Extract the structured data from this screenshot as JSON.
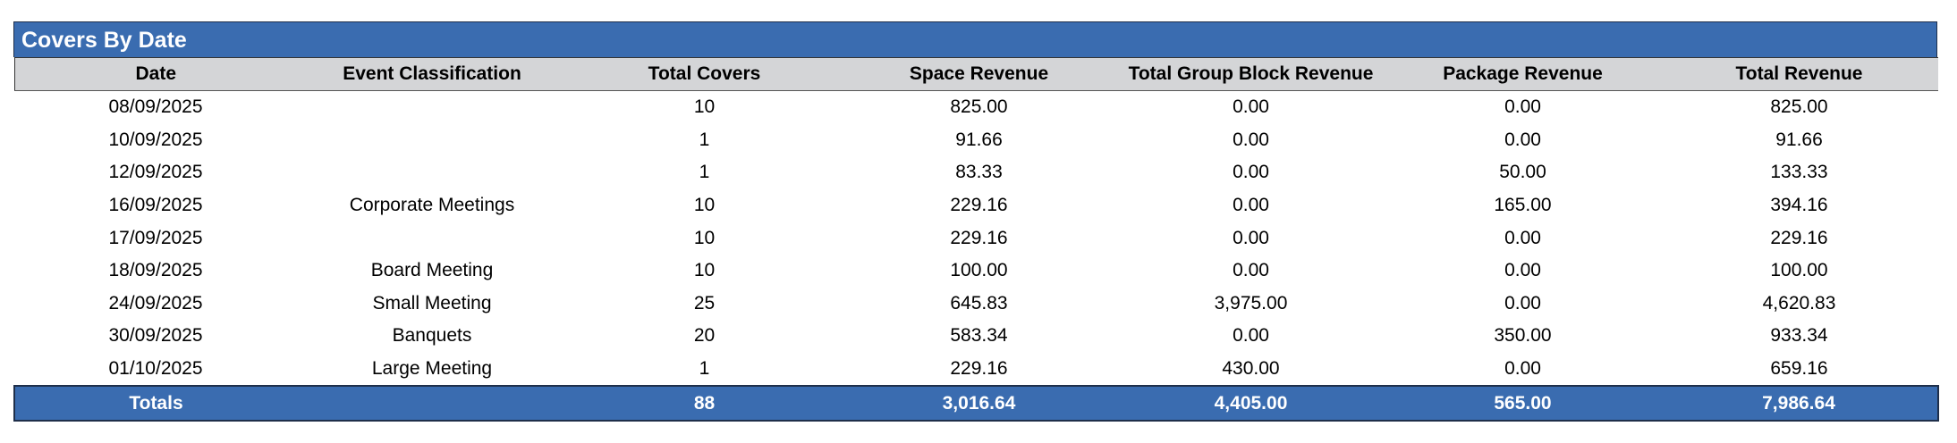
{
  "report": {
    "title": "Covers By Date",
    "columns": [
      "Date",
      "Event Classification",
      "Total Covers",
      "Space Revenue",
      "Total Group Block Revenue",
      "Package Revenue",
      "Total Revenue"
    ],
    "rows": [
      [
        "08/09/2025",
        "",
        "10",
        "825.00",
        "0.00",
        "0.00",
        "825.00"
      ],
      [
        "10/09/2025",
        "",
        "1",
        "91.66",
        "0.00",
        "0.00",
        "91.66"
      ],
      [
        "12/09/2025",
        "",
        "1",
        "83.33",
        "0.00",
        "50.00",
        "133.33"
      ],
      [
        "16/09/2025",
        "Corporate Meetings",
        "10",
        "229.16",
        "0.00",
        "165.00",
        "394.16"
      ],
      [
        "17/09/2025",
        "",
        "10",
        "229.16",
        "0.00",
        "0.00",
        "229.16"
      ],
      [
        "18/09/2025",
        "Board Meeting",
        "10",
        "100.00",
        "0.00",
        "0.00",
        "100.00"
      ],
      [
        "24/09/2025",
        "Small Meeting",
        "25",
        "645.83",
        "3,975.00",
        "0.00",
        "4,620.83"
      ],
      [
        "30/09/2025",
        "Banquets",
        "20",
        "583.34",
        "0.00",
        "350.00",
        "933.34"
      ],
      [
        "01/10/2025",
        "Large Meeting",
        "1",
        "229.16",
        "430.00",
        "0.00",
        "659.16"
      ]
    ],
    "totals": [
      "Totals",
      "",
      "88",
      "3,016.64",
      "4,405.00",
      "565.00",
      "7,986.64"
    ],
    "colors": {
      "header_blue": "#3a6cb0",
      "column_header_gray": "#d4d5d7"
    }
  }
}
